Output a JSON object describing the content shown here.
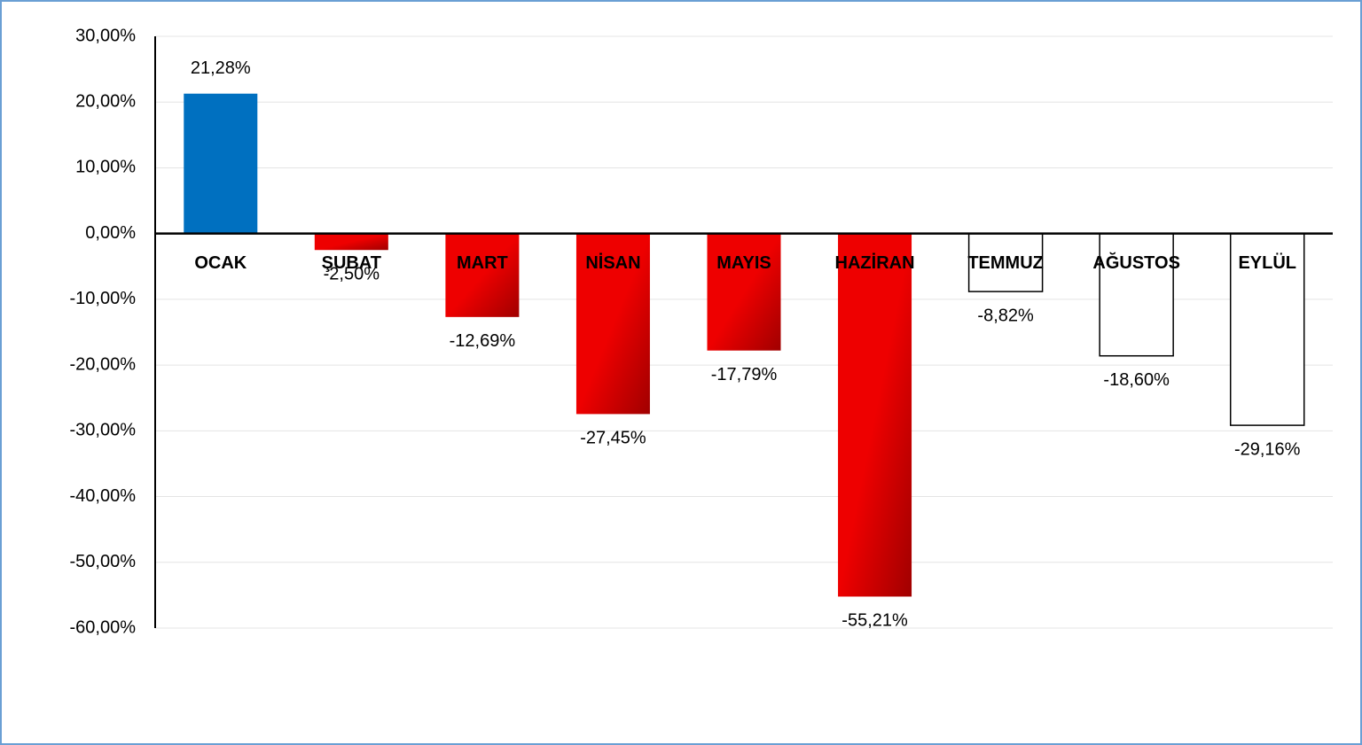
{
  "chart_data": {
    "type": "bar",
    "categories": [
      "OCAK",
      "ŞUBAT",
      "MART",
      "NİSAN",
      "MAYIS",
      "HAZİRAN",
      "TEMMUZ",
      "AĞUSTOS",
      "EYLÜL"
    ],
    "values": [
      21.28,
      -2.5,
      -12.69,
      -27.45,
      -17.79,
      -55.21,
      -8.82,
      -18.6,
      -29.16
    ],
    "value_labels": [
      "21,28%",
      "-2,50%",
      "-12,69%",
      "-27,45%",
      "-17,79%",
      "-55,21%",
      "-8,82%",
      "-18,60%",
      "-29,16%"
    ],
    "colors": [
      "#0070c0",
      "#ee0000",
      "#ee0000",
      "#ee0000",
      "#ee0000",
      "#ee0000",
      "#ffffff",
      "#ffffff",
      "#ffffff"
    ],
    "ylim": [
      -60,
      30
    ],
    "yticks": [
      {
        "value": -60,
        "label": "-60,00%"
      },
      {
        "value": -50,
        "label": "-50,00%"
      },
      {
        "value": -40,
        "label": "-40,00%"
      },
      {
        "value": -30,
        "label": "-30,00%"
      },
      {
        "value": -20,
        "label": "-20,00%"
      },
      {
        "value": -10,
        "label": "-10,00%"
      },
      {
        "value": 0,
        "label": "0,00%"
      },
      {
        "value": 10,
        "label": "10,00%"
      },
      {
        "value": 20,
        "label": "20,00%"
      },
      {
        "value": 30,
        "label": "30,00%"
      }
    ],
    "grid": true
  }
}
